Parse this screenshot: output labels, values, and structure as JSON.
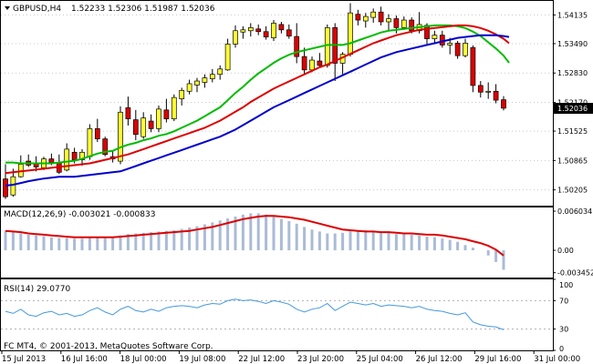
{
  "chart_data": [
    {
      "type": "candlestick",
      "header": {
        "symbol": "GBPUSD,H4",
        "prices": "1.52233 1.52306 1.51987 1.52036"
      },
      "ylim": [
        1.4985,
        1.5445
      ],
      "y_ticks": [
        "1.54135",
        "1.53490",
        "1.52830",
        "1.52170",
        "1.51525",
        "1.50865",
        "1.50205"
      ],
      "y_tick_values": [
        1.54135,
        1.5349,
        1.5283,
        1.5217,
        1.51525,
        1.50865,
        1.50205
      ],
      "current_price": {
        "label": "1.52036",
        "value": 1.52036
      },
      "candles": [
        [
          1.5045,
          1.5078,
          1.5,
          1.5005
        ],
        [
          1.5009,
          1.5068,
          1.5005,
          1.505
        ],
        [
          1.505,
          1.5098,
          1.5048,
          1.5078
        ],
        [
          1.5085,
          1.51,
          1.5072,
          1.5076
        ],
        [
          1.508,
          1.5096,
          1.5062,
          1.5072
        ],
        [
          1.507,
          1.5095,
          1.5065,
          1.509
        ],
        [
          1.509,
          1.5102,
          1.5076,
          1.5082
        ],
        [
          1.5082,
          1.51,
          1.5056,
          1.506
        ],
        [
          1.5065,
          1.5125,
          1.5062,
          1.5112
        ],
        [
          1.5105,
          1.5115,
          1.508,
          1.5088
        ],
        [
          1.5088,
          1.5112,
          1.5075,
          1.5105
        ],
        [
          1.5095,
          1.5168,
          1.5088,
          1.5158
        ],
        [
          1.5158,
          1.518,
          1.5128,
          1.5135
        ],
        [
          1.5135,
          1.514,
          1.5096,
          1.51
        ],
        [
          1.5095,
          1.5108,
          1.5082,
          1.509
        ],
        [
          1.5085,
          1.5208,
          1.5078,
          1.5195
        ],
        [
          1.5205,
          1.523,
          1.5165,
          1.518
        ],
        [
          1.5178,
          1.52,
          1.5132,
          1.5145
        ],
        [
          1.514,
          1.5195,
          1.5135,
          1.5182
        ],
        [
          1.5175,
          1.519,
          1.515,
          1.5158
        ],
        [
          1.5158,
          1.521,
          1.515,
          1.5202
        ],
        [
          1.52,
          1.5225,
          1.5172,
          1.518
        ],
        [
          1.518,
          1.5235,
          1.5175,
          1.5228
        ],
        [
          1.5225,
          1.525,
          1.521,
          1.5244
        ],
        [
          1.5242,
          1.5268,
          1.5235,
          1.5259
        ],
        [
          1.5256,
          1.5272,
          1.524,
          1.5265
        ],
        [
          1.5262,
          1.528,
          1.525,
          1.5272
        ],
        [
          1.527,
          1.5292,
          1.5262,
          1.528
        ],
        [
          1.528,
          1.53,
          1.5268,
          1.5292
        ],
        [
          1.529,
          1.536,
          1.5288,
          1.5348
        ],
        [
          1.5348,
          1.539,
          1.534,
          1.5378
        ],
        [
          1.5375,
          1.5388,
          1.536,
          1.538
        ],
        [
          1.5378,
          1.5395,
          1.5365,
          1.5385
        ],
        [
          1.5382,
          1.5392,
          1.5368,
          1.5376
        ],
        [
          1.5376,
          1.5388,
          1.5358,
          1.5364
        ],
        [
          1.5362,
          1.5402,
          1.5355,
          1.5395
        ],
        [
          1.5392,
          1.5398,
          1.5372,
          1.538
        ],
        [
          1.538,
          1.5392,
          1.536,
          1.5366
        ],
        [
          1.5365,
          1.5395,
          1.5305,
          1.532
        ],
        [
          1.532,
          1.534,
          1.528,
          1.529
        ],
        [
          1.529,
          1.532,
          1.5285,
          1.5312
        ],
        [
          1.531,
          1.5328,
          1.5295,
          1.53
        ],
        [
          1.53,
          1.5392,
          1.5295,
          1.5385
        ],
        [
          1.5385,
          1.5395,
          1.5265,
          1.5305
        ],
        [
          1.5305,
          1.533,
          1.528,
          1.5325
        ],
        [
          1.5325,
          1.544,
          1.532,
          1.5418
        ],
        [
          1.5415,
          1.5425,
          1.539,
          1.5402
        ],
        [
          1.54,
          1.5418,
          1.5385,
          1.541
        ],
        [
          1.5408,
          1.5428,
          1.5396,
          1.542
        ],
        [
          1.542,
          1.5432,
          1.539,
          1.5398
        ],
        [
          1.5398,
          1.5415,
          1.5378,
          1.5405
        ],
        [
          1.5405,
          1.5412,
          1.5372,
          1.5385
        ],
        [
          1.5385,
          1.541,
          1.538,
          1.5402
        ],
        [
          1.5402,
          1.5408,
          1.5372,
          1.5378
        ],
        [
          1.5378,
          1.542,
          1.5372,
          1.5392
        ],
        [
          1.539,
          1.5395,
          1.5348,
          1.536
        ],
        [
          1.536,
          1.5378,
          1.5352,
          1.5368
        ],
        [
          1.5368,
          1.5378,
          1.534,
          1.5346
        ],
        [
          1.5346,
          1.5362,
          1.5325,
          1.535
        ],
        [
          1.535,
          1.5355,
          1.5315,
          1.5322
        ],
        [
          1.5322,
          1.536,
          1.5318,
          1.535
        ],
        [
          1.534,
          1.5345,
          1.524,
          1.5255
        ],
        [
          1.5255,
          1.5265,
          1.5228,
          1.524
        ],
        [
          1.524,
          1.5262,
          1.5225,
          1.5242
        ],
        [
          1.5242,
          1.5258,
          1.5215,
          1.5222
        ],
        [
          1.5223,
          1.5231,
          1.5199,
          1.5204
        ]
      ],
      "series": [
        {
          "color": "#00bb00",
          "values": [
            1.5082,
            1.5082,
            1.508,
            1.508,
            1.508,
            1.508,
            1.508,
            1.5082,
            1.5084,
            1.5086,
            1.509,
            1.5096,
            1.5102,
            1.5106,
            1.5108,
            1.5116,
            1.5122,
            1.5126,
            1.5132,
            1.5136,
            1.5142,
            1.5146,
            1.5152,
            1.516,
            1.5168,
            1.5176,
            1.5186,
            1.5196,
            1.5206,
            1.5222,
            1.5238,
            1.5252,
            1.5268,
            1.5282,
            1.5294,
            1.5306,
            1.5316,
            1.5324,
            1.533,
            1.5334,
            1.5338,
            1.5342,
            1.5346,
            1.5346,
            1.5346,
            1.535,
            1.5356,
            1.5362,
            1.5368,
            1.5374,
            1.5378,
            1.538,
            1.5382,
            1.5384,
            1.5386,
            1.5388,
            1.539,
            1.539,
            1.539,
            1.5388,
            1.5384,
            1.5376,
            1.5366,
            1.5352,
            1.5338,
            1.5322
          ]
        },
        {
          "color": "#dd0000",
          "values": [
            1.5058,
            1.506,
            1.5062,
            1.5064,
            1.5066,
            1.5068,
            1.507,
            1.5072,
            1.5074,
            1.5076,
            1.5078,
            1.508,
            1.5084,
            1.5088,
            1.5092,
            1.5096,
            1.51,
            1.5106,
            1.5112,
            1.5118,
            1.5124,
            1.513,
            1.5136,
            1.5142,
            1.5148,
            1.5154,
            1.516,
            1.5168,
            1.5176,
            1.5186,
            1.5196,
            1.5206,
            1.5218,
            1.5228,
            1.5238,
            1.5248,
            1.5256,
            1.5264,
            1.5272,
            1.528,
            1.5288,
            1.5296,
            1.5302,
            1.531,
            1.5318,
            1.5326,
            1.5334,
            1.5342,
            1.535,
            1.5356,
            1.5362,
            1.5368,
            1.5372,
            1.5376,
            1.538,
            1.5382,
            1.5384,
            1.5386,
            1.5388,
            1.539,
            1.539,
            1.5388,
            1.5384,
            1.5378,
            1.537,
            1.536
          ]
        },
        {
          "color": "#0000cc",
          "values": [
            1.503,
            1.5032,
            1.5036,
            1.504,
            1.5043,
            1.5046,
            1.5048,
            1.505,
            1.505,
            1.505,
            1.5052,
            1.5054,
            1.5056,
            1.5058,
            1.506,
            1.5062,
            1.5068,
            1.5074,
            1.508,
            1.5086,
            1.5092,
            1.5098,
            1.5104,
            1.511,
            1.5116,
            1.5122,
            1.5128,
            1.5134,
            1.514,
            1.5148,
            1.5156,
            1.5166,
            1.5176,
            1.5186,
            1.5196,
            1.5206,
            1.5214,
            1.5222,
            1.523,
            1.5238,
            1.5246,
            1.5254,
            1.5262,
            1.527,
            1.5278,
            1.5286,
            1.5294,
            1.5302,
            1.531,
            1.5318,
            1.5324,
            1.533,
            1.5334,
            1.5338,
            1.5342,
            1.5346,
            1.535,
            1.5354,
            1.5358,
            1.5362,
            1.5364,
            1.5366,
            1.5368,
            1.5368,
            1.5368,
            1.5366
          ]
        }
      ],
      "x_tick_labels": [
        "15 Jul 2013",
        "16 Jul 16:00",
        "18 Jul 00:00",
        "19 Jul 08:00",
        "22 Jul 12:00",
        "23 Jul 20:00",
        "25 Jul 04:00",
        "26 Jul 12:00",
        "29 Jul 16:00",
        "31 Jul 00:00"
      ],
      "x_tick_index": [
        0,
        8,
        16,
        24,
        32,
        40,
        48,
        56,
        64,
        72
      ]
    },
    {
      "type": "bar",
      "title": "MACD(12,26,9) -0.003021 -0.000833",
      "ylim": [
        -0.0042,
        0.0066
      ],
      "y_ticks": [
        "0.006034",
        "0.00",
        "-0.003452"
      ],
      "y_tick_values": [
        0.006034,
        0,
        -0.003452
      ],
      "values": [
        0.003,
        0.0028,
        0.0026,
        0.0024,
        0.0023,
        0.0022,
        0.002,
        0.0019,
        0.0019,
        0.0018,
        0.0018,
        0.0019,
        0.002,
        0.0021,
        0.0021,
        0.0023,
        0.0025,
        0.0026,
        0.0027,
        0.0028,
        0.0029,
        0.003,
        0.0031,
        0.0033,
        0.0035,
        0.0037,
        0.004,
        0.0043,
        0.0046,
        0.0049,
        0.0052,
        0.0055,
        0.0057,
        0.0057,
        0.0055,
        0.0052,
        0.0048,
        0.0045,
        0.0041,
        0.0036,
        0.0032,
        0.0029,
        0.0026,
        0.0026,
        0.0027,
        0.003,
        0.0031,
        0.0031,
        0.003,
        0.0028,
        0.0027,
        0.0025,
        0.0025,
        0.0024,
        0.0023,
        0.0021,
        0.002,
        0.0018,
        0.0016,
        0.0013,
        0.0008,
        0.0004,
        0.0,
        -0.0008,
        -0.0018,
        -0.003
      ],
      "signal": [
        0.003,
        0.0029,
        0.0028,
        0.0026,
        0.0025,
        0.0024,
        0.0023,
        0.0022,
        0.0021,
        0.002,
        0.002,
        0.002,
        0.002,
        0.002,
        0.002,
        0.0021,
        0.0022,
        0.0023,
        0.0024,
        0.0025,
        0.0026,
        0.0027,
        0.0028,
        0.0029,
        0.003,
        0.0032,
        0.0034,
        0.0036,
        0.0039,
        0.0042,
        0.0045,
        0.0048,
        0.005,
        0.0052,
        0.0053,
        0.0053,
        0.0052,
        0.0051,
        0.0049,
        0.0047,
        0.0044,
        0.0041,
        0.0038,
        0.0035,
        0.0032,
        0.0031,
        0.003,
        0.0029,
        0.0029,
        0.0028,
        0.0028,
        0.0027,
        0.0026,
        0.0026,
        0.0025,
        0.0024,
        0.0024,
        0.0023,
        0.0021,
        0.0019,
        0.0017,
        0.0014,
        0.0011,
        0.0007,
        0.0001,
        -0.0008
      ],
      "colors": {
        "histogram": "#aabbd6",
        "signal": "#dd0000"
      }
    },
    {
      "type": "line",
      "title": "RSI(14) 29.0770",
      "ylim": [
        0,
        100
      ],
      "y_ticks": [
        "100",
        "70",
        "30",
        "0"
      ],
      "y_tick_values": [
        100,
        70,
        30,
        0
      ],
      "values": [
        55,
        52,
        58,
        50,
        48,
        53,
        55,
        50,
        52,
        48,
        50,
        56,
        60,
        54,
        50,
        58,
        62,
        56,
        54,
        58,
        55,
        60,
        62,
        63,
        62,
        60,
        64,
        66,
        65,
        70,
        72,
        70,
        71,
        69,
        66,
        70,
        68,
        65,
        58,
        54,
        58,
        60,
        66,
        56,
        62,
        68,
        66,
        64,
        66,
        62,
        64,
        63,
        62,
        60,
        62,
        58,
        56,
        55,
        52,
        50,
        53,
        40,
        36,
        34,
        33,
        29
      ],
      "color": "#4499dd"
    }
  ],
  "footer": {
    "text": "FC MT4, © 2001-2013, MetaQuotes Software Corp."
  }
}
